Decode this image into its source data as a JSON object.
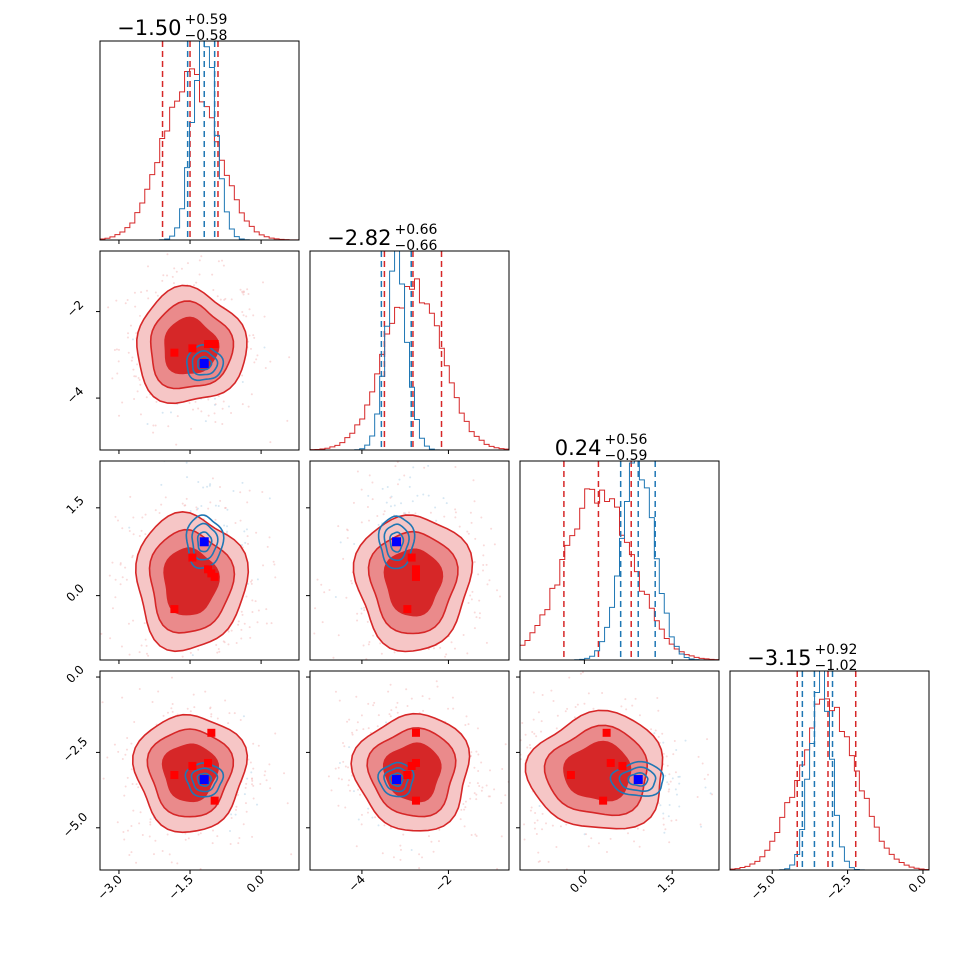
{
  "chart_data": {
    "type": "corner",
    "colors": {
      "red": "#d62728",
      "red_fill_outer": "#f6c6c6",
      "red_fill_mid": "#ea8a8b",
      "red_fill_inner": "#d62728",
      "blue": "#1f77b4",
      "truth_marker": "#0000ff",
      "point_marker": "#ff0000"
    },
    "parameters": [
      {
        "id": "p0",
        "range": [
          -3.4,
          0.8
        ],
        "ticks": [
          -3.0,
          -1.5,
          0.0
        ],
        "tick_labels": [
          "−3.0",
          "−1.5",
          "0.0"
        ]
      },
      {
        "id": "p1",
        "range": [
          -5.2,
          -0.6
        ],
        "ticks": [
          -4,
          -2
        ],
        "tick_labels": [
          "−4",
          "−2"
        ]
      },
      {
        "id": "p2",
        "range": [
          -1.1,
          2.3
        ],
        "ticks": [
          0.0,
          1.5
        ],
        "tick_labels": [
          "0.0",
          "1.5"
        ]
      },
      {
        "id": "p3",
        "range": [
          -6.4,
          0.2
        ],
        "ticks": [
          -5.0,
          -2.5,
          0.0
        ],
        "tick_labels": [
          "−5.0",
          "−2.5",
          "0.0"
        ]
      }
    ],
    "titles": [
      {
        "value": "−1.50",
        "plus": "+0.59",
        "minus": "−0.58"
      },
      {
        "value": "−2.82",
        "plus": "+0.66",
        "minus": "−0.66"
      },
      {
        "value": "0.24",
        "plus": "+0.56",
        "minus": "−0.59"
      },
      {
        "value": "−3.15",
        "plus": "+0.92",
        "minus": "−1.02"
      }
    ],
    "series": [
      {
        "color": "#d62728",
        "mean": [
          -1.5,
          -2.82,
          0.24,
          -3.15
        ],
        "std": [
          0.58,
          0.66,
          0.58,
          0.97
        ],
        "quantiles": [
          [
            -2.08,
            -1.5,
            -0.91
          ],
          [
            -3.48,
            -2.82,
            -2.16
          ],
          [
            -0.35,
            0.24,
            0.8
          ],
          [
            -4.17,
            -3.15,
            -2.23
          ]
        ],
        "filled": true
      },
      {
        "color": "#1f77b4",
        "mean": [
          -1.2,
          -3.2,
          0.92,
          -3.4
        ],
        "std": [
          0.24,
          0.25,
          0.28,
          0.35
        ],
        "quantiles": [
          [
            -1.55,
            -1.2,
            -0.98
          ],
          [
            -3.55,
            -2.86,
            -2.86
          ],
          [
            0.62,
            0.92,
            1.21
          ],
          [
            -4.0,
            -3.6,
            -3.0
          ]
        ],
        "filled": false
      }
    ],
    "truth": [
      -1.2,
      -3.2,
      0.92,
      -3.4
    ],
    "red_points": [
      [
        -1.83,
        -2.95,
        -0.23,
        -3.25
      ],
      [
        -1.45,
        -2.85,
        0.65,
        -2.95
      ],
      [
        -1.12,
        -2.75,
        0.45,
        -2.85
      ],
      [
        -0.98,
        -2.75,
        0.32,
        -4.1
      ],
      [
        -1.05,
        -2.75,
        0.38,
        -1.85
      ]
    ],
    "levels": [
      0.5,
      1.0,
      1.5,
      2.0
    ]
  }
}
